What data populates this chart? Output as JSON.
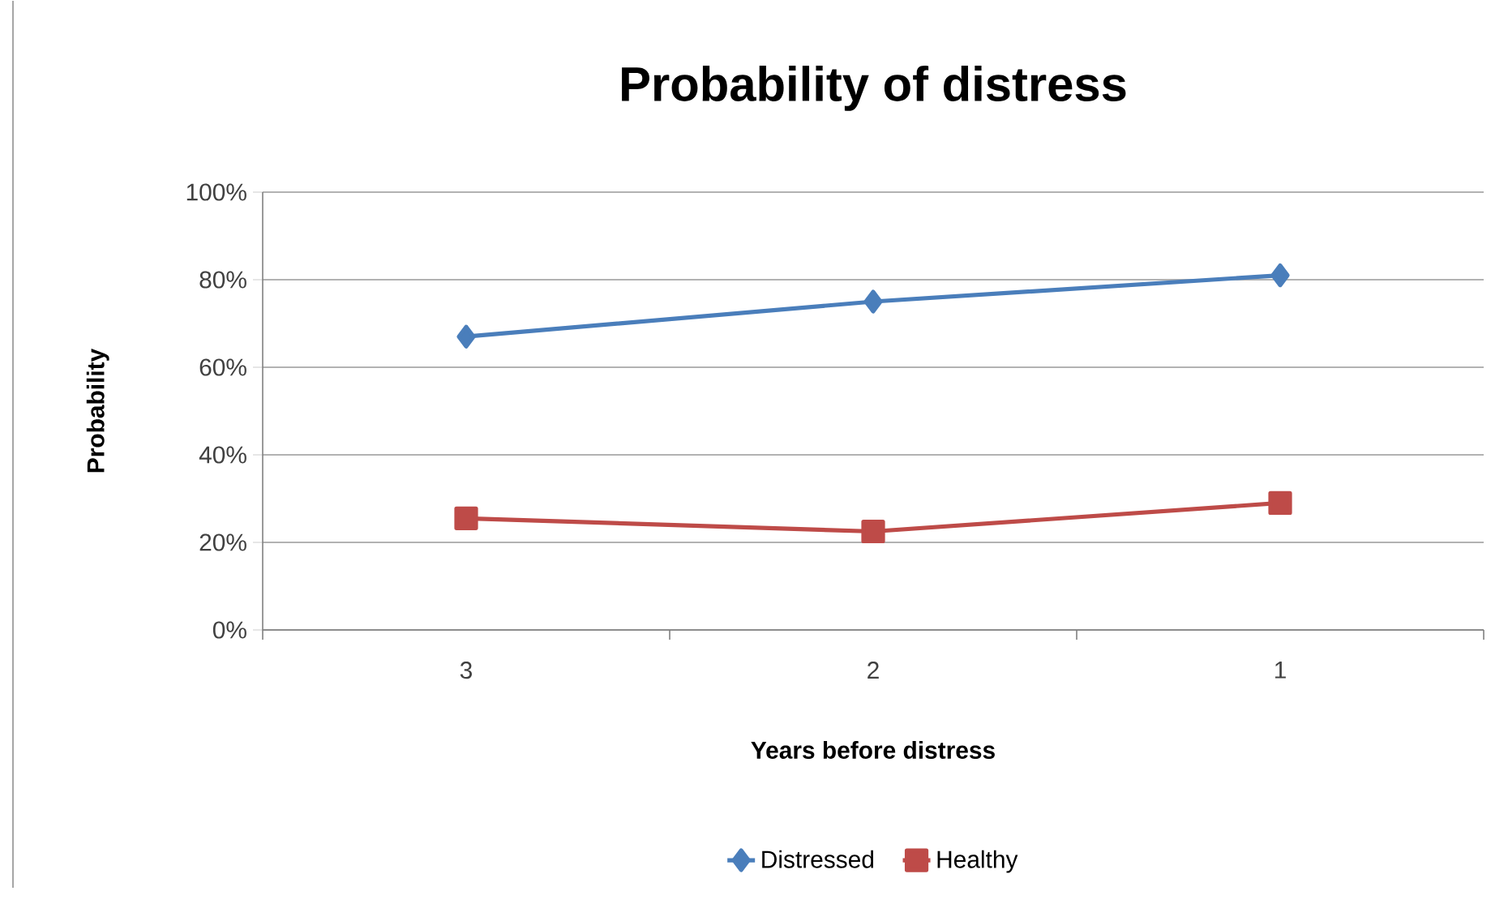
{
  "chart_data": {
    "type": "line",
    "title": "Probability of distress",
    "xlabel": "Years before distress",
    "ylabel": "Probability",
    "categories": [
      "3",
      "2",
      "1"
    ],
    "series": [
      {
        "name": "Distressed",
        "color": "#4a7ebb",
        "marker": "diamond",
        "values": [
          67,
          75,
          81
        ]
      },
      {
        "name": "Healthy",
        "color": "#be4b48",
        "marker": "square",
        "values": [
          25.5,
          22.5,
          29
        ]
      }
    ],
    "ylim": [
      0,
      100
    ],
    "yticks": [
      {
        "value": 0,
        "label": "0%"
      },
      {
        "value": 20,
        "label": "20%"
      },
      {
        "value": 40,
        "label": "40%"
      },
      {
        "value": 60,
        "label": "60%"
      },
      {
        "value": 80,
        "label": "80%"
      },
      {
        "value": 100,
        "label": "100%"
      }
    ],
    "grid": "y",
    "legend": "bottom",
    "line_style": "solid"
  }
}
